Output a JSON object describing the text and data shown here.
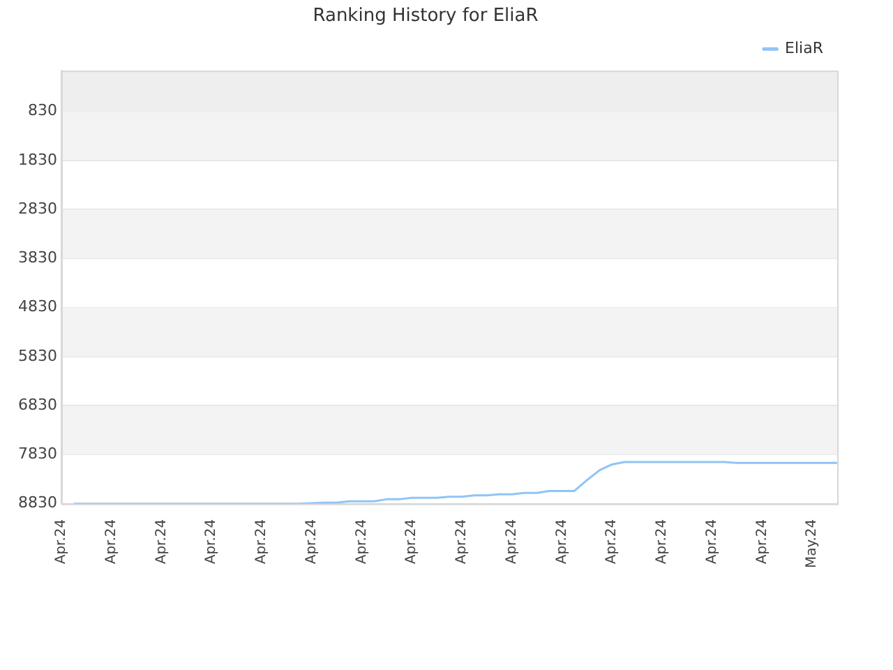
{
  "chart_data": {
    "type": "line",
    "title": "Ranking History for EliaR",
    "categories": [
      "Apr.24",
      null,
      null,
      null,
      "Apr.24",
      null,
      null,
      null,
      "Apr.24",
      null,
      null,
      null,
      "Apr.24",
      null,
      null,
      null,
      "Apr.24",
      null,
      null,
      null,
      "Apr.24",
      null,
      null,
      null,
      "Apr.24",
      null,
      null,
      null,
      "Apr.24",
      null,
      null,
      null,
      "Apr.24",
      null,
      null,
      null,
      "Apr.24",
      null,
      null,
      null,
      "Apr.24",
      null,
      null,
      null,
      "Apr.24",
      null,
      null,
      null,
      "Apr.24",
      null,
      null,
      null,
      "Apr.24",
      null,
      null,
      null,
      "Apr.24",
      null,
      null,
      null,
      "May.24",
      null,
      null
    ],
    "series": [
      {
        "name": "EliaR",
        "color": "#90c4f5",
        "values": [
          null,
          8830,
          8830,
          8830,
          8830,
          8830,
          8830,
          8830,
          8830,
          8830,
          8830,
          8830,
          8830,
          8830,
          8830,
          8830,
          8830,
          8830,
          8830,
          8830,
          8820,
          8810,
          8810,
          8780,
          8780,
          8780,
          8740,
          8740,
          8710,
          8710,
          8710,
          8690,
          8690,
          8660,
          8660,
          8640,
          8640,
          8610,
          8610,
          8570,
          8570,
          8570,
          8350,
          8150,
          8030,
          7980,
          7980,
          7980,
          7980,
          7980,
          7980,
          7980,
          7980,
          7980,
          8000,
          8000,
          8000,
          8000,
          8000,
          8000,
          8000,
          8000,
          8000
        ]
      }
    ],
    "ylim": [
      8830,
      0
    ],
    "yticks": [
      830,
      1830,
      2830,
      3830,
      4830,
      5830,
      6830,
      7830,
      8830
    ],
    "bands": [
      {
        "axis": "y",
        "from": 0,
        "to": 830,
        "color": "#eeeeee"
      },
      {
        "axis": "y",
        "from": 830,
        "to": 1830,
        "color": "#f3f3f3"
      },
      {
        "axis": "y",
        "from": 2830,
        "to": 3830,
        "color": "#f3f3f3"
      },
      {
        "axis": "y",
        "from": 4830,
        "to": 5830,
        "color": "#f3f3f3"
      },
      {
        "axis": "y",
        "from": 6830,
        "to": 7830,
        "color": "#f3f3f3"
      }
    ],
    "grid": "y",
    "legend": "top right",
    "marker": "none",
    "line_style": "solid"
  }
}
